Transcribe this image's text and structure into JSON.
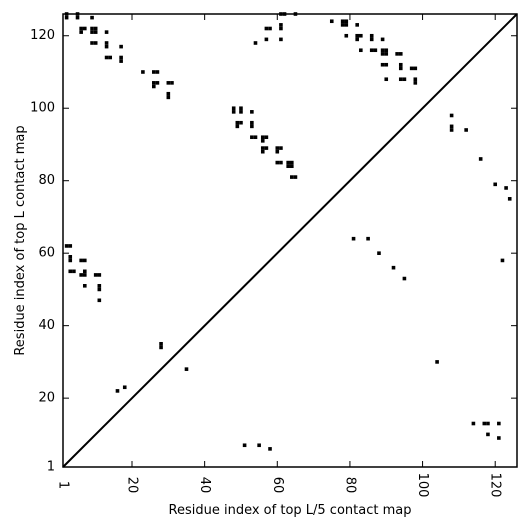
{
  "chart_data": {
    "type": "heatmap",
    "title": "",
    "xlabel": "Residue index of top L/5 contact map",
    "ylabel": "Residue index of top L contact map",
    "xlim": [
      1,
      126
    ],
    "ylim": [
      1,
      126
    ],
    "x_ticks": [
      1,
      20,
      40,
      60,
      80,
      100,
      120
    ],
    "y_ticks": [
      1,
      20,
      40,
      60,
      80,
      100,
      120
    ],
    "x_tick_rotation": -90,
    "diagonal": true,
    "cell_color": "#000000",
    "background_color": "#ffffff",
    "upper_triangle_contacts": [
      [
        2,
        126
      ],
      [
        2,
        125
      ],
      [
        5,
        125
      ],
      [
        9,
        125
      ],
      [
        5,
        126
      ],
      [
        6,
        122
      ],
      [
        7,
        122
      ],
      [
        6,
        121
      ],
      [
        9,
        122
      ],
      [
        10,
        122
      ],
      [
        9,
        121
      ],
      [
        10,
        121
      ],
      [
        9,
        118
      ],
      [
        10,
        118
      ],
      [
        13,
        121
      ],
      [
        13,
        118
      ],
      [
        13,
        117
      ],
      [
        13,
        114
      ],
      [
        14,
        114
      ],
      [
        17,
        117
      ],
      [
        17,
        114
      ],
      [
        17,
        113
      ],
      [
        23,
        110
      ],
      [
        26,
        110
      ],
      [
        27,
        110
      ],
      [
        26,
        107
      ],
      [
        27,
        107
      ],
      [
        26,
        106
      ],
      [
        30,
        107
      ],
      [
        31,
        107
      ],
      [
        30,
        104
      ],
      [
        30,
        103
      ],
      [
        18,
        23
      ],
      [
        16,
        22
      ],
      [
        28,
        35
      ],
      [
        28,
        34
      ],
      [
        35,
        28
      ],
      [
        2,
        62
      ],
      [
        3,
        62
      ],
      [
        3,
        59
      ],
      [
        3,
        58
      ],
      [
        3,
        55
      ],
      [
        4,
        55
      ],
      [
        6,
        58
      ],
      [
        7,
        58
      ],
      [
        7,
        55
      ],
      [
        6,
        54
      ],
      [
        7,
        54
      ],
      [
        7,
        51
      ],
      [
        10,
        54
      ],
      [
        11,
        54
      ],
      [
        11,
        51
      ],
      [
        11,
        50
      ],
      [
        11,
        47
      ],
      [
        48,
        100
      ],
      [
        48,
        99
      ],
      [
        50,
        100
      ],
      [
        50,
        99
      ],
      [
        49,
        96
      ],
      [
        50,
        96
      ],
      [
        49,
        95
      ],
      [
        53,
        99
      ],
      [
        53,
        96
      ],
      [
        53,
        95
      ],
      [
        53,
        92
      ],
      [
        54,
        92
      ],
      [
        56,
        92
      ],
      [
        57,
        92
      ],
      [
        56,
        91
      ],
      [
        56,
        89
      ],
      [
        57,
        89
      ],
      [
        56,
        88
      ],
      [
        60,
        89
      ],
      [
        61,
        89
      ],
      [
        60,
        88
      ],
      [
        60,
        85
      ],
      [
        61,
        85
      ],
      [
        63,
        85
      ],
      [
        64,
        85
      ],
      [
        63,
        84
      ],
      [
        64,
        84
      ],
      [
        64,
        81
      ],
      [
        65,
        81
      ],
      [
        54,
        118
      ],
      [
        57,
        122
      ],
      [
        58,
        122
      ],
      [
        57,
        119
      ],
      [
        61,
        126
      ],
      [
        62,
        126
      ],
      [
        61,
        123
      ],
      [
        61,
        122
      ],
      [
        61,
        119
      ],
      [
        65,
        126
      ],
      [
        75,
        124
      ],
      [
        78,
        124
      ],
      [
        79,
        124
      ],
      [
        78,
        123
      ],
      [
        79,
        123
      ],
      [
        79,
        120
      ],
      [
        82,
        123
      ],
      [
        82,
        120
      ],
      [
        83,
        120
      ],
      [
        82,
        119
      ],
      [
        83,
        116
      ],
      [
        86,
        120
      ],
      [
        86,
        119
      ],
      [
        86,
        116
      ],
      [
        87,
        116
      ],
      [
        89,
        119
      ],
      [
        89,
        116
      ],
      [
        90,
        116
      ],
      [
        89,
        115
      ],
      [
        90,
        115
      ],
      [
        89,
        112
      ],
      [
        90,
        112
      ],
      [
        93,
        115
      ],
      [
        94,
        115
      ],
      [
        94,
        112
      ],
      [
        94,
        111
      ],
      [
        90,
        108
      ],
      [
        94,
        108
      ],
      [
        95,
        108
      ],
      [
        97,
        111
      ],
      [
        98,
        111
      ],
      [
        98,
        108
      ],
      [
        98,
        107
      ]
    ],
    "lower_triangle_contacts": [
      [
        108,
        98
      ],
      [
        108,
        95
      ],
      [
        108,
        94
      ],
      [
        112,
        94
      ],
      [
        116,
        86
      ],
      [
        120,
        79
      ],
      [
        123,
        78
      ],
      [
        124,
        75
      ],
      [
        122,
        58
      ],
      [
        81,
        64
      ],
      [
        85,
        64
      ],
      [
        88,
        60
      ],
      [
        92,
        56
      ],
      [
        95,
        53
      ],
      [
        104,
        30
      ],
      [
        51,
        7
      ],
      [
        55,
        7
      ],
      [
        58,
        6
      ],
      [
        114,
        13
      ],
      [
        117,
        13
      ],
      [
        118,
        13
      ],
      [
        121,
        13
      ],
      [
        118,
        10
      ],
      [
        121,
        9
      ]
    ]
  }
}
